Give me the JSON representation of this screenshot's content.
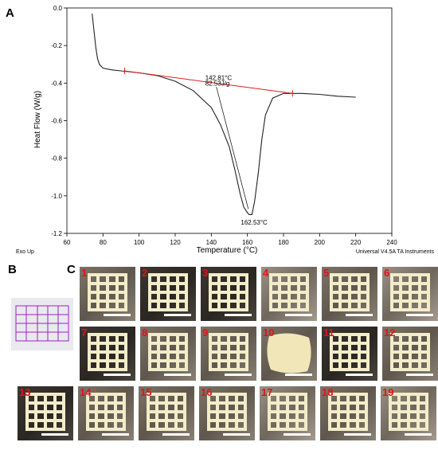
{
  "panels": {
    "a": "A",
    "b": "B",
    "c": "C"
  },
  "chart_data": {
    "type": "line",
    "xlabel": "Temperature (°C)",
    "ylabel": "Heat Flow (W/g)",
    "xlim": [
      60,
      240
    ],
    "ylim": [
      -1.2,
      0.0
    ],
    "xticks": [
      "60",
      "80",
      "100",
      "120",
      "140",
      "160",
      "180",
      "200",
      "220",
      "240"
    ],
    "yticks": [
      "0.0",
      "-0.2",
      "-0.4",
      "-0.6",
      "-0.8",
      "-1.0",
      "-1.2"
    ],
    "series": [
      {
        "color": "#222222",
        "x": [
          74,
          75,
          76,
          77,
          78,
          80,
          85,
          90,
          100,
          110,
          120,
          130,
          140,
          145,
          150,
          153,
          156,
          158,
          160,
          161,
          162.53,
          164,
          166,
          168,
          170,
          174,
          180,
          190,
          200,
          210,
          220
        ],
        "y": [
          -0.03,
          -0.12,
          -0.21,
          -0.27,
          -0.3,
          -0.32,
          -0.33,
          -0.335,
          -0.345,
          -0.36,
          -0.39,
          -0.44,
          -0.53,
          -0.62,
          -0.74,
          -0.86,
          -0.99,
          -1.06,
          -1.09,
          -1.1,
          -1.1,
          -1.03,
          -0.88,
          -0.7,
          -0.57,
          -0.48,
          -0.455,
          -0.455,
          -0.46,
          -0.47,
          -0.475
        ]
      }
    ],
    "baseline": {
      "color": "#e0201b",
      "x": [
        92,
        185
      ],
      "y": [
        -0.335,
        -0.455
      ]
    },
    "annotations": [
      {
        "text": "142.81°C",
        "x": 142.81,
        "y": -0.37
      },
      {
        "text": "82.53J/g",
        "x": 142.81,
        "y": -0.4
      },
      {
        "text": "162.53°C",
        "x": 162.53,
        "y": -1.14
      }
    ],
    "footer_left": "Exo Up",
    "footer_right": "Universal V4.5A TA Instruments",
    "grid": false
  },
  "photos": [
    {
      "label": "1"
    },
    {
      "label": "2"
    },
    {
      "label": "3"
    },
    {
      "label": "4"
    },
    {
      "label": "5"
    },
    {
      "label": "6"
    },
    {
      "label": "7"
    },
    {
      "label": "8"
    },
    {
      "label": "9"
    },
    {
      "label": "10"
    },
    {
      "label": "11"
    },
    {
      "label": "12"
    },
    {
      "label": "13"
    },
    {
      "label": "14"
    },
    {
      "label": "15"
    },
    {
      "label": "16"
    },
    {
      "label": "17"
    },
    {
      "label": "18"
    },
    {
      "label": "19"
    }
  ],
  "colors": {
    "grid_lines_b": "#a020c8",
    "cad_bg": "#e9e9ee",
    "scaffold": "#f3ecc8"
  }
}
